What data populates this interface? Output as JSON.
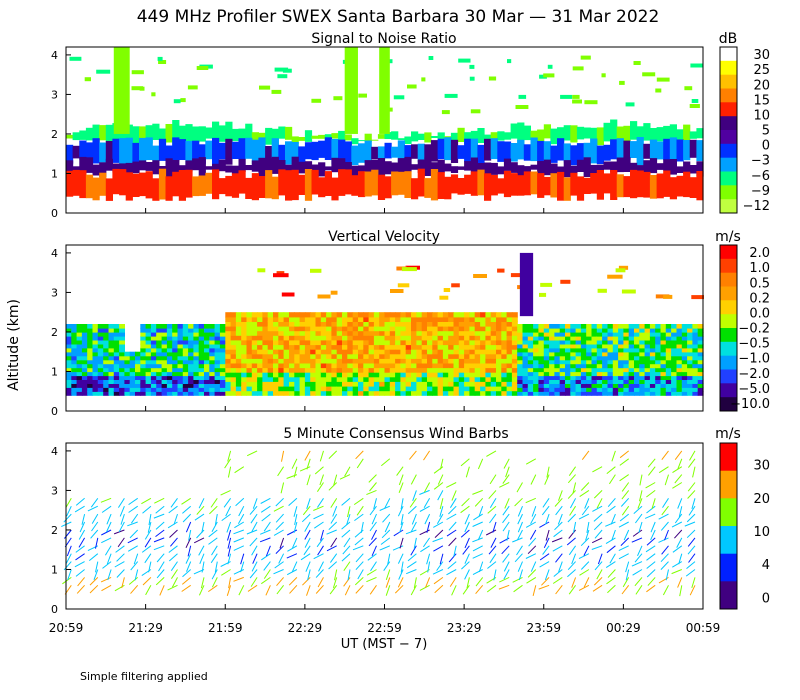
{
  "chart_data": {
    "type": "heatmap",
    "title": "449 MHz Profiler SWEX Santa Barbara 30 Mar — 31 Mar 2022",
    "ylabel": "Altitude (km)",
    "xlabel": "UT  (MST − 7)",
    "footnote": "Simple filtering applied",
    "x_ticks": [
      "20:59",
      "21:29",
      "21:59",
      "22:29",
      "22:59",
      "23:29",
      "23:59",
      "00:29",
      "00:59"
    ],
    "xlim_minutes": [
      0,
      240
    ],
    "y_ticks": [
      "0",
      "1",
      "2",
      "3",
      "4"
    ],
    "ylim_km": [
      0,
      4.2
    ],
    "panels": [
      {
        "id": "snr",
        "title": "Signal to Noise Ratio",
        "units": "dB",
        "color_scale": {
          "labels": [
            "30",
            "25",
            "20",
            "15",
            "10",
            "5",
            "0",
            "−3",
            "−6",
            "−9",
            "−12"
          ],
          "colors": [
            "#ffffff",
            "#ffff00",
            "#ffc000",
            "#ff8000",
            "#ff2000",
            "#400080",
            "#5000a0",
            "#0030ff",
            "#00a0ff",
            "#00ff80",
            "#80ff00",
            "#c0ff40"
          ]
        },
        "layers": [
          {
            "top_km": 2.1,
            "bottom_km": 1.8,
            "value_db": -9,
            "note": "upper green band"
          },
          {
            "top_km": 1.8,
            "bottom_km": 1.3,
            "value_db": 0,
            "note": "blue / purple inversion band"
          },
          {
            "top_km": 1.3,
            "bottom_km": 1.0,
            "value_db": 5,
            "note": "purple layer"
          },
          {
            "top_km": 1.0,
            "bottom_km": 0.4,
            "value_db": 10,
            "note": "red low-level layer"
          }
        ]
      },
      {
        "id": "w",
        "title": "Vertical Velocity",
        "units": "m/s",
        "color_scale": {
          "labels": [
            "2.0",
            "1.0",
            "0.5",
            "0.2",
            "0.0",
            "−0.2",
            "−0.5",
            "−1.0",
            "−2.0",
            "−5.0",
            "−10.0"
          ],
          "colors": [
            "#ff0000",
            "#ff4000",
            "#ff8000",
            "#ffa000",
            "#ffd000",
            "#c0ff00",
            "#00e000",
            "#00e0e0",
            "#00a0ff",
            "#2040ff",
            "#4000a0",
            "#200040"
          ]
        },
        "regions": [
          {
            "from_min": 0,
            "to_min": 60,
            "top_km": 2.2,
            "value_ms": -0.8,
            "note": "downward (blue)"
          },
          {
            "from_min": 60,
            "to_min": 170,
            "top_km": 2.5,
            "value_ms": 0.6,
            "note": "upward (orange)"
          },
          {
            "from_min": 170,
            "to_min": 240,
            "top_km": 2.2,
            "value_ms": -0.5,
            "note": "mixed"
          }
        ]
      },
      {
        "id": "wind",
        "title": "5 Minute Consensus Wind Barbs",
        "units": "m/s",
        "color_scale": {
          "labels": [
            "30",
            "20",
            "10",
            "4",
            "0"
          ],
          "colors": [
            "#ff0000",
            "#ffa000",
            "#80ff00",
            "#00c8ff",
            "#0020ff",
            "#400080"
          ]
        },
        "profile": [
          {
            "alt_km": 1.0,
            "speed_ms": 9
          },
          {
            "alt_km": 1.5,
            "speed_ms": 5
          },
          {
            "alt_km": 2.0,
            "speed_ms": 4
          },
          {
            "alt_km": 2.5,
            "speed_ms": 8
          },
          {
            "alt_km": 3.5,
            "speed_ms": 15
          },
          {
            "alt_km": 4.0,
            "speed_ms": 20
          }
        ]
      }
    ]
  }
}
